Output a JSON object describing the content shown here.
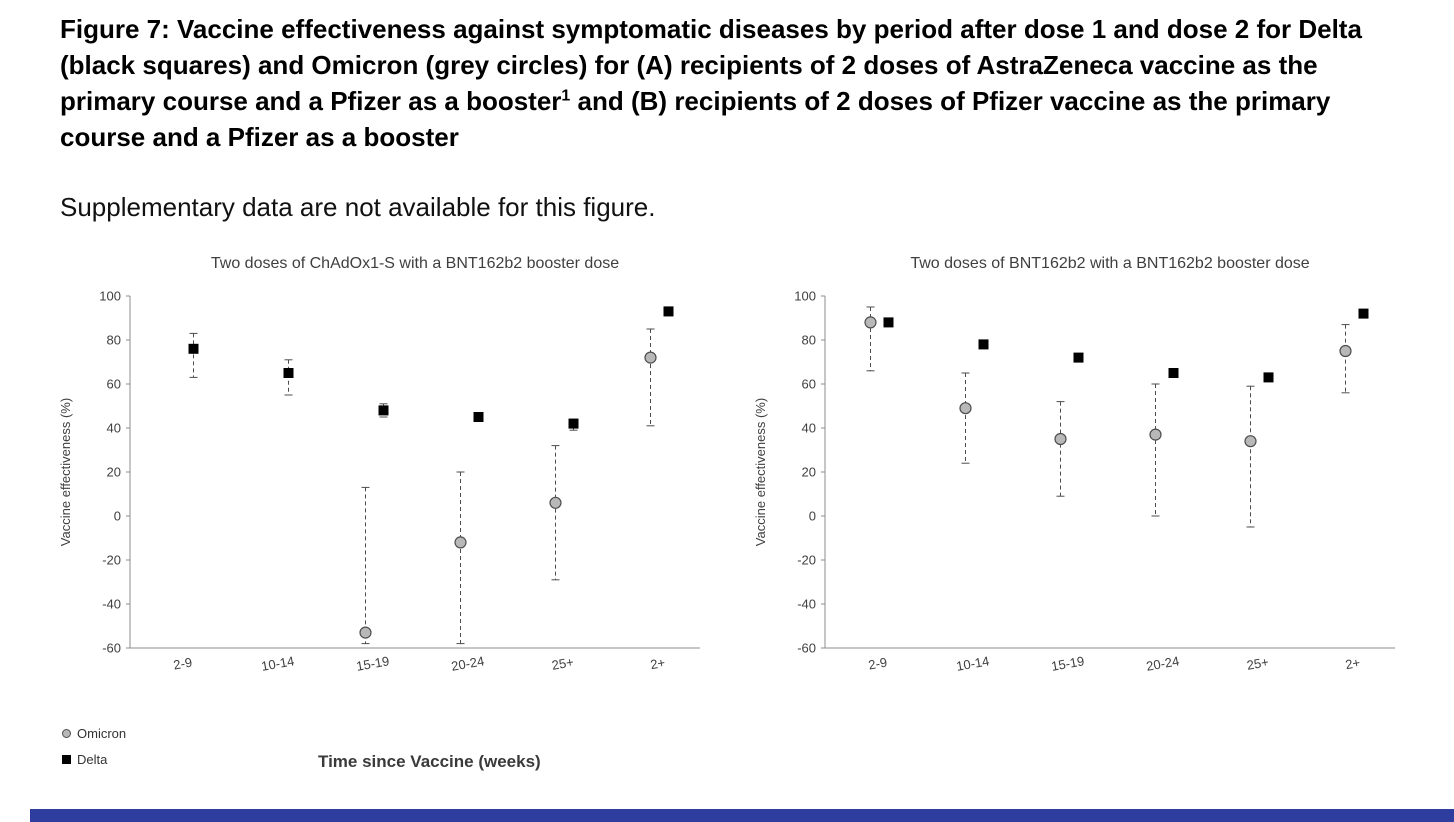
{
  "page": {
    "background": "#ffffff",
    "footer_bar_color": "#2f3e9e"
  },
  "figure_title": {
    "part1": "Figure 7: Vaccine effectiveness against symptomatic diseases by period after dose 1 and dose 2 for Delta (black squares) and Omicron (grey circles) for (A) recipients of 2 doses of AstraZeneca vaccine as the primary course and a Pfizer as a booster",
    "superscript": "1",
    "part2": " and (B) recipients of 2 doses of Pfizer vaccine as the primary course and a Pfizer as a booster"
  },
  "supplementary_note": "Supplementary data are not available for this figure.",
  "chart_data": [
    {
      "type": "scatter",
      "title": "Two doses of ChAdOx1-S with a BNT162b2 booster dose",
      "ylabel": "Vaccine effectiveness (%)",
      "xlabel": "Time since Vaccine (weeks)",
      "ylim": [
        -60,
        100
      ],
      "yticks": [
        100,
        80,
        60,
        40,
        20,
        0,
        -20,
        -40,
        -60
      ],
      "categories": [
        "2-9",
        "10-14",
        "15-19",
        "20-24",
        "25+",
        "2+"
      ],
      "grid": false,
      "legend_position": "below-left",
      "series": [
        {
          "name": "Omicron",
          "marker": "circle",
          "color": "#b8b8b8",
          "edge": "#4d4d4d",
          "offset": -2,
          "points": [
            {
              "x": "15-19",
              "y": -53,
              "lo": -58,
              "hi": 13
            },
            {
              "x": "20-24",
              "y": -12,
              "lo": -58,
              "hi": 20
            },
            {
              "x": "25+",
              "y": 6,
              "lo": -29,
              "hi": 32
            },
            {
              "x": "2+",
              "y": 72,
              "lo": 41,
              "hi": 85
            }
          ]
        },
        {
          "name": "Delta",
          "marker": "square",
          "color": "#000000",
          "offset": 16,
          "points": [
            {
              "x": "2-9",
              "y": 76,
              "lo": 63,
              "hi": 83
            },
            {
              "x": "10-14",
              "y": 65,
              "lo": 55,
              "hi": 71
            },
            {
              "x": "15-19",
              "y": 48,
              "lo": 45,
              "hi": 51
            },
            {
              "x": "20-24",
              "y": 45,
              "lo": 43,
              "hi": 47
            },
            {
              "x": "25+",
              "y": 42,
              "lo": 39,
              "hi": 44
            },
            {
              "x": "2+",
              "y": 93,
              "lo": 91,
              "hi": 95
            }
          ]
        }
      ]
    },
    {
      "type": "scatter",
      "title": "Two doses of BNT162b2 with a BNT162b2 booster dose",
      "ylabel": "Vaccine effectiveness (%)",
      "xlabel": "Time since Vaccine (weeks)",
      "ylim": [
        -60,
        100
      ],
      "yticks": [
        100,
        80,
        60,
        40,
        20,
        0,
        -20,
        -40,
        -60
      ],
      "categories": [
        "2-9",
        "10-14",
        "15-19",
        "20-24",
        "25+",
        "2+"
      ],
      "grid": false,
      "legend_position": "below-left",
      "series": [
        {
          "name": "Omicron",
          "marker": "circle",
          "color": "#b8b8b8",
          "edge": "#4d4d4d",
          "offset": -2,
          "points": [
            {
              "x": "2-9",
              "y": 88,
              "lo": 66,
              "hi": 95
            },
            {
              "x": "10-14",
              "y": 49,
              "lo": 24,
              "hi": 65
            },
            {
              "x": "15-19",
              "y": 35,
              "lo": 9,
              "hi": 52
            },
            {
              "x": "20-24",
              "y": 37,
              "lo": 0,
              "hi": 60
            },
            {
              "x": "25+",
              "y": 34,
              "lo": -5,
              "hi": 59
            },
            {
              "x": "2+",
              "y": 75,
              "lo": 56,
              "hi": 87
            }
          ]
        },
        {
          "name": "Delta",
          "marker": "square",
          "color": "#000000",
          "offset": 16,
          "points": [
            {
              "x": "2-9",
              "y": 88
            },
            {
              "x": "10-14",
              "y": 78
            },
            {
              "x": "15-19",
              "y": 72
            },
            {
              "x": "20-24",
              "y": 65
            },
            {
              "x": "25+",
              "y": 63
            },
            {
              "x": "2+",
              "y": 92
            }
          ]
        }
      ]
    }
  ]
}
